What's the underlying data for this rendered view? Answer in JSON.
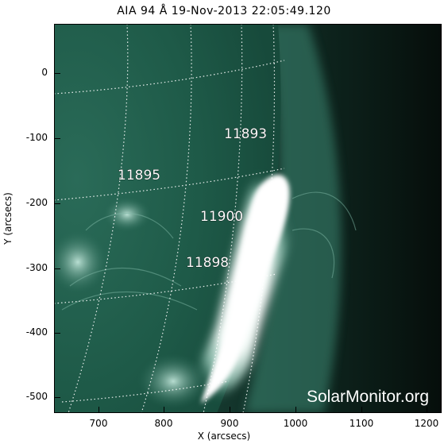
{
  "title": "AIA 94 Å 19-Nov-2013 22:05:49.120",
  "xlabel": "X (arcsecs)",
  "ylabel": "Y (arcsecs)",
  "x_ticks": [
    "700",
    "800",
    "900",
    "1000",
    "1100",
    "1200"
  ],
  "y_ticks": [
    "0",
    "-100",
    "-200",
    "-300",
    "-400",
    "-500"
  ],
  "regions": [
    "11893",
    "11895",
    "11900",
    "11898"
  ],
  "watermark": "SolarMonitor.org",
  "colors": {
    "disk": "#1e5a48",
    "corona": "#0a1a15",
    "flare": "#ffffff",
    "grid": "#ffffff"
  }
}
